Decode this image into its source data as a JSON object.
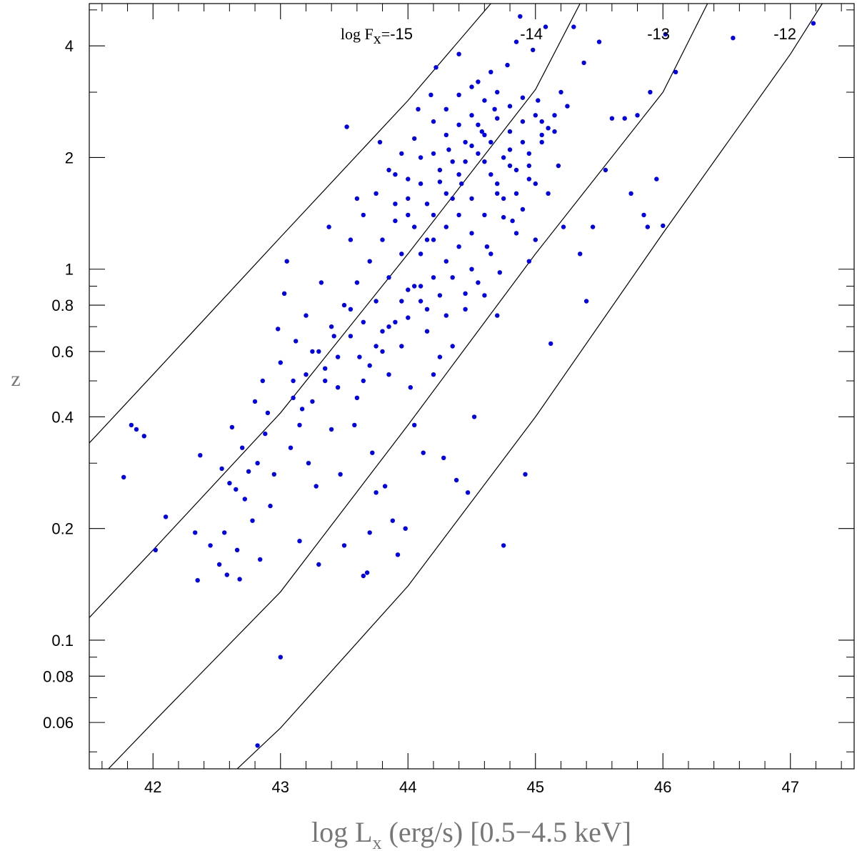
{
  "chart_data": {
    "type": "scatter",
    "xlabel": {
      "main": "log L",
      "sub": "x",
      "rest": " (erg/s) [0.5−4.5 keV]"
    },
    "ylabel": "z",
    "xlim": [
      41.5,
      47.5
    ],
    "ylim": [
      0.045,
      5.2
    ],
    "yscale": "log",
    "x_ticks": {
      "major": [
        42,
        43,
        44,
        45,
        46,
        47
      ],
      "labels": [
        "42",
        "43",
        "44",
        "45",
        "46",
        "47"
      ],
      "minor_step": 0.2
    },
    "y_ticks": {
      "major": [
        0.06,
        0.08,
        0.1,
        0.2,
        0.4,
        0.6,
        0.8,
        1,
        2,
        4
      ],
      "labels": [
        "0.06",
        "0.08",
        "0.1",
        "0.2",
        "0.4",
        "0.6",
        "0.8",
        "1",
        "2",
        "4"
      ],
      "minor": [
        0.05,
        0.07,
        0.09,
        0.3,
        0.5,
        0.7,
        0.9,
        3,
        5
      ]
    },
    "grid": false,
    "point_color": "#0000ee",
    "flux_lines": [
      {
        "flux": -15,
        "label": "-15",
        "prefix": "log F",
        "prefix_sub": "x",
        "prefix_eq": "=",
        "points": [
          [
            41.5,
            0.34
          ],
          [
            42.0,
            0.52
          ],
          [
            43.0,
            1.22
          ],
          [
            44.0,
            2.85
          ],
          [
            44.65,
            5.2
          ]
        ]
      },
      {
        "flux": -14,
        "label": "-14",
        "prefix": "",
        "points": [
          [
            41.5,
            0.115
          ],
          [
            42.0,
            0.175
          ],
          [
            43.0,
            0.41
          ],
          [
            44.0,
            1.1
          ],
          [
            45.0,
            3.05
          ],
          [
            45.35,
            5.2
          ]
        ]
      },
      {
        "flux": -13,
        "label": "-13",
        "prefix": "",
        "points": [
          [
            41.65,
            0.045
          ],
          [
            42.0,
            0.06
          ],
          [
            43.0,
            0.135
          ],
          [
            44.0,
            0.38
          ],
          [
            45.0,
            1.1
          ],
          [
            46.0,
            3.0
          ],
          [
            46.35,
            5.2
          ]
        ]
      },
      {
        "flux": -12,
        "label": "-12",
        "prefix": "",
        "points": [
          [
            42.66,
            0.045
          ],
          [
            43.0,
            0.058
          ],
          [
            44.0,
            0.14
          ],
          [
            45.0,
            0.4
          ],
          [
            46.0,
            1.25
          ],
          [
            47.0,
            3.8
          ],
          [
            47.25,
            5.2
          ]
        ]
      }
    ],
    "series": [
      {
        "points": [
          [
            41.77,
            0.275
          ],
          [
            41.83,
            0.38
          ],
          [
            41.87,
            0.37
          ],
          [
            41.93,
            0.355
          ],
          [
            42.02,
            0.175
          ],
          [
            42.1,
            0.215
          ],
          [
            42.33,
            0.195
          ],
          [
            42.35,
            0.145
          ],
          [
            42.37,
            0.315
          ],
          [
            42.45,
            0.18
          ],
          [
            42.52,
            0.16
          ],
          [
            42.54,
            0.29
          ],
          [
            42.56,
            0.195
          ],
          [
            42.58,
            0.15
          ],
          [
            42.6,
            0.265
          ],
          [
            42.62,
            0.375
          ],
          [
            42.65,
            0.255
          ],
          [
            42.66,
            0.175
          ],
          [
            42.68,
            0.146
          ],
          [
            42.7,
            0.33
          ],
          [
            42.72,
            0.24
          ],
          [
            42.75,
            0.285
          ],
          [
            42.78,
            0.21
          ],
          [
            42.8,
            0.44
          ],
          [
            42.82,
            0.3
          ],
          [
            42.84,
            0.165
          ],
          [
            42.86,
            0.5
          ],
          [
            42.88,
            0.36
          ],
          [
            42.9,
            0.41
          ],
          [
            42.92,
            0.23
          ],
          [
            42.95,
            0.28
          ],
          [
            42.98,
            0.69
          ],
          [
            43.0,
            0.56
          ],
          [
            43.03,
            0.86
          ],
          [
            43.05,
            1.05
          ],
          [
            43.08,
            0.33
          ],
          [
            43.1,
            0.5
          ],
          [
            43.12,
            0.64
          ],
          [
            43.15,
            0.185
          ],
          [
            43.17,
            0.42
          ],
          [
            43.2,
            0.75
          ],
          [
            43.22,
            0.3
          ],
          [
            43.25,
            0.6
          ],
          [
            43.28,
            0.26
          ],
          [
            43.3,
            0.16
          ],
          [
            43.32,
            0.92
          ],
          [
            43.35,
            0.54
          ],
          [
            43.38,
            1.3
          ],
          [
            43.4,
            0.37
          ],
          [
            43.42,
            0.66
          ],
          [
            43.45,
            0.48
          ],
          [
            43.47,
            0.28
          ],
          [
            43.5,
            0.18
          ],
          [
            43.52,
            2.42
          ],
          [
            43.55,
            0.78
          ],
          [
            43.58,
            0.38
          ],
          [
            43.6,
            1.55
          ],
          [
            43.62,
            0.58
          ],
          [
            43.65,
            0.149
          ],
          [
            43.68,
            0.152
          ],
          [
            43.7,
            0.195
          ],
          [
            43.72,
            0.32
          ],
          [
            43.75,
            0.25
          ],
          [
            43.78,
            2.2
          ],
          [
            43.8,
            0.68
          ],
          [
            43.82,
            0.26
          ],
          [
            43.85,
            0.52
          ],
          [
            43.88,
            0.21
          ],
          [
            43.9,
            1.8
          ],
          [
            43.92,
            0.17
          ],
          [
            43.95,
            0.62
          ],
          [
            43.98,
            0.2
          ],
          [
            44.0,
            1.4
          ],
          [
            44.02,
            0.48
          ],
          [
            44.05,
            0.38
          ],
          [
            44.08,
            2.7
          ],
          [
            44.1,
            0.9
          ],
          [
            44.12,
            0.32
          ],
          [
            44.15,
            1.2
          ],
          [
            44.18,
            2.95
          ],
          [
            44.2,
            0.52
          ],
          [
            44.22,
            3.5
          ],
          [
            44.25,
            1.85
          ],
          [
            44.28,
            0.31
          ],
          [
            44.3,
            0.75
          ],
          [
            44.32,
            2.1
          ],
          [
            44.35,
            1.55
          ],
          [
            44.38,
            0.27
          ],
          [
            44.4,
            3.8
          ],
          [
            44.42,
            1.7
          ],
          [
            44.45,
            0.86
          ],
          [
            44.47,
            0.25
          ],
          [
            44.5,
            2.6
          ],
          [
            44.52,
            0.4
          ],
          [
            44.55,
            3.2
          ],
          [
            44.58,
            2.35
          ],
          [
            44.6,
            1.95
          ],
          [
            44.62,
            1.15
          ],
          [
            44.65,
            3.4
          ],
          [
            44.68,
            2.7
          ],
          [
            44.7,
            1.6
          ],
          [
            44.72,
            0.98
          ],
          [
            44.75,
            0.18
          ],
          [
            44.78,
            3.55
          ],
          [
            44.8,
            2.1
          ],
          [
            44.82,
            1.35
          ],
          [
            44.85,
            4.1
          ],
          [
            44.88,
            4.8
          ],
          [
            44.9,
            2.5
          ],
          [
            44.92,
            0.28
          ],
          [
            44.95,
            1.75
          ],
          [
            44.98,
            3.9
          ],
          [
            45.0,
            1.2
          ],
          [
            45.02,
            2.85
          ],
          [
            45.05,
            2.2
          ],
          [
            45.08,
            4.5
          ],
          [
            45.1,
            1.6
          ],
          [
            45.12,
            0.63
          ],
          [
            45.15,
            2.6
          ],
          [
            45.18,
            1.9
          ],
          [
            45.2,
            3.0
          ],
          [
            45.22,
            1.3
          ],
          [
            45.25,
            2.75
          ],
          [
            45.3,
            4.5
          ],
          [
            45.35,
            1.1
          ],
          [
            45.38,
            3.6
          ],
          [
            45.4,
            0.82
          ],
          [
            45.45,
            1.3
          ],
          [
            45.5,
            4.1
          ],
          [
            45.55,
            1.85
          ],
          [
            45.6,
            2.55
          ],
          [
            45.7,
            2.55
          ],
          [
            45.75,
            1.6
          ],
          [
            45.8,
            2.6
          ],
          [
            45.85,
            1.4
          ],
          [
            45.88,
            1.3
          ],
          [
            45.9,
            3.0
          ],
          [
            45.95,
            1.75
          ],
          [
            46.0,
            1.31
          ],
          [
            46.02,
            4.3
          ],
          [
            46.1,
            3.4
          ],
          [
            46.55,
            4.2
          ],
          [
            47.18,
            4.6
          ],
          [
            42.82,
            0.052
          ],
          [
            43.0,
            0.09
          ],
          [
            44.0,
            0.74
          ],
          [
            44.1,
            0.82
          ],
          [
            44.2,
            0.95
          ],
          [
            44.3,
            1.05
          ],
          [
            44.4,
            1.15
          ],
          [
            44.5,
            1.25
          ],
          [
            43.6,
            0.45
          ],
          [
            43.7,
            0.55
          ],
          [
            43.8,
            0.6
          ],
          [
            43.9,
            0.72
          ],
          [
            44.0,
            0.88
          ],
          [
            44.15,
            0.68
          ],
          [
            44.25,
            0.58
          ],
          [
            44.35,
            0.62
          ],
          [
            44.45,
            0.78
          ],
          [
            44.55,
            0.92
          ],
          [
            44.65,
            1.1
          ],
          [
            44.75,
            1.38
          ],
          [
            44.85,
            1.6
          ],
          [
            44.95,
            1.9
          ],
          [
            45.05,
            2.3
          ],
          [
            43.55,
            0.66
          ],
          [
            43.65,
            0.72
          ],
          [
            43.75,
            0.82
          ],
          [
            43.85,
            0.95
          ],
          [
            43.95,
            1.1
          ],
          [
            44.05,
            1.3
          ],
          [
            44.15,
            1.5
          ],
          [
            44.25,
            1.72
          ],
          [
            44.35,
            1.95
          ],
          [
            44.45,
            2.2
          ],
          [
            44.55,
            2.45
          ],
          [
            44.65,
            2.2
          ],
          [
            44.75,
            2.0
          ],
          [
            44.85,
            1.85
          ],
          [
            44.95,
            2.05
          ],
          [
            45.05,
            2.5
          ],
          [
            45.15,
            2.35
          ],
          [
            44.3,
            2.3
          ],
          [
            44.4,
            2.45
          ],
          [
            44.5,
            2.15
          ],
          [
            44.6,
            2.3
          ],
          [
            44.7,
            2.55
          ],
          [
            44.8,
            2.35
          ],
          [
            44.9,
            2.2
          ],
          [
            44.2,
            2.05
          ],
          [
            44.1,
            1.7
          ],
          [
            44.0,
            1.55
          ],
          [
            43.9,
            1.35
          ],
          [
            43.8,
            1.2
          ],
          [
            43.7,
            1.05
          ],
          [
            43.6,
            0.92
          ],
          [
            43.5,
            0.8
          ],
          [
            43.4,
            0.7
          ],
          [
            43.3,
            0.6
          ],
          [
            43.2,
            0.52
          ],
          [
            43.1,
            0.45
          ],
          [
            44.2,
            1.4
          ],
          [
            44.3,
            1.6
          ],
          [
            44.4,
            1.8
          ],
          [
            44.5,
            1.55
          ],
          [
            44.6,
            1.4
          ],
          [
            44.7,
            1.7
          ],
          [
            44.8,
            1.9
          ],
          [
            44.9,
            1.45
          ],
          [
            45.0,
            1.7
          ],
          [
            44.1,
            1.1
          ],
          [
            44.2,
            1.2
          ],
          [
            44.3,
            1.3
          ],
          [
            44.4,
            1.4
          ],
          [
            44.5,
            1.0
          ],
          [
            44.6,
            0.85
          ],
          [
            44.7,
            0.75
          ],
          [
            44.05,
            0.9
          ],
          [
            43.95,
            0.82
          ],
          [
            43.85,
            0.7
          ],
          [
            43.75,
            0.62
          ],
          [
            43.65,
            0.5
          ],
          [
            43.45,
            0.58
          ],
          [
            43.35,
            0.5
          ],
          [
            43.25,
            0.44
          ],
          [
            43.15,
            0.38
          ],
          [
            43.9,
            1.5
          ],
          [
            44.0,
            1.75
          ],
          [
            44.1,
            2.0
          ],
          [
            44.2,
            2.5
          ],
          [
            44.3,
            2.7
          ],
          [
            44.4,
            2.95
          ],
          [
            44.5,
            3.1
          ],
          [
            44.6,
            2.85
          ],
          [
            44.7,
            3.0
          ],
          [
            44.8,
            2.75
          ],
          [
            44.9,
            2.9
          ],
          [
            45.0,
            2.6
          ],
          [
            45.1,
            2.4
          ],
          [
            44.45,
            1.95
          ],
          [
            44.55,
            2.05
          ],
          [
            44.65,
            1.8
          ],
          [
            44.75,
            1.55
          ],
          [
            44.85,
            1.25
          ],
          [
            44.95,
            1.05
          ],
          [
            44.35,
            0.95
          ],
          [
            44.25,
            0.85
          ],
          [
            44.15,
            0.78
          ],
          [
            43.55,
            1.2
          ],
          [
            43.65,
            1.4
          ],
          [
            43.75,
            1.6
          ],
          [
            43.85,
            1.85
          ],
          [
            43.95,
            2.05
          ],
          [
            44.05,
            2.25
          ]
        ]
      }
    ]
  }
}
